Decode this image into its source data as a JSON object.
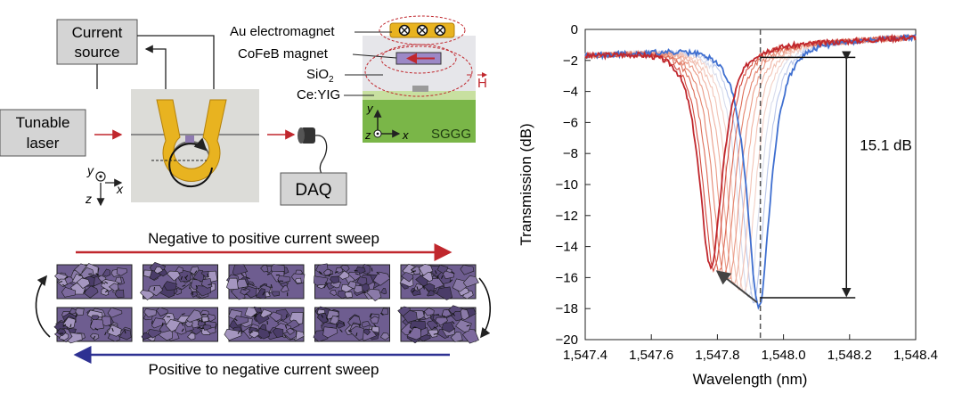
{
  "schematic": {
    "current_source": "Current\nsource",
    "tunable_laser": "Tunable\nlaser",
    "daq": "DAQ",
    "axes_left": {
      "y": "y",
      "x": "x",
      "z": "z"
    },
    "cross_section": {
      "au_label": "Au electromagnet",
      "cofeb_label": "CoFeB magnet",
      "sio2_label": "SiO",
      "sio2_sub": "2",
      "ceyig_label": "Ce:YIG",
      "sggg_label": "SGGG",
      "h_label": "H",
      "axes": {
        "y": "y",
        "z": "z",
        "x": "x"
      }
    }
  },
  "sweeps": {
    "forward_label": "Negative to positive current sweep",
    "reverse_label": "Positive to negative current sweep",
    "forward_color": "#c0272d",
    "reverse_color": "#2e3192",
    "domain_rows": 2,
    "domain_cols": 5
  },
  "colors": {
    "gold": "#e8b320",
    "gold_dark": "#b3800a",
    "chip": "#dcdcd8",
    "sggg": "#7ab648",
    "ceyig": "#c8e0a0",
    "domain_fill": "#7d6a9e",
    "red": "#c0272d",
    "blue": "#3f6fd0"
  },
  "chart_data": {
    "type": "line",
    "xlabel": "Wavelength (nm)",
    "ylabel": "Transmission (dB)",
    "xlim": [
      1547.4,
      1548.4
    ],
    "ylim": [
      -20,
      0
    ],
    "x_ticks": [
      "1,547.4",
      "1,547.6",
      "1,547.8",
      "1,548.0",
      "1,548.2",
      "1,548.4"
    ],
    "y_ticks": [
      "0",
      "−2",
      "−4",
      "−6",
      "−8",
      "−10",
      "−12",
      "−14",
      "−16",
      "−18",
      "−20"
    ],
    "grid": false,
    "dashed_line_x": 1547.93,
    "annotation": {
      "text": "15.1 dB",
      "x": 1548.15,
      "y_top": -1.8,
      "y_bottom": -17.3
    },
    "trend_arrow": {
      "from": [
        1547.92,
        -17.6
      ],
      "to": [
        1547.8,
        -15.6
      ]
    },
    "series": [
      {
        "color": "#c0272d",
        "center": 1547.78,
        "depth": -15.3,
        "width": 0.075
      },
      {
        "color": "#d24a3e",
        "center": 1547.79,
        "depth": -15.5,
        "width": 0.075
      },
      {
        "color": "#dc6a55",
        "center": 1547.805,
        "depth": -15.7,
        "width": 0.075
      },
      {
        "color": "#e4836d",
        "center": 1547.82,
        "depth": -15.9,
        "width": 0.075
      },
      {
        "color": "#ea9a86",
        "center": 1547.835,
        "depth": -16.1,
        "width": 0.075
      },
      {
        "color": "#efb09f",
        "center": 1547.85,
        "depth": -16.4,
        "width": 0.075
      },
      {
        "color": "#f2c2b4",
        "center": 1547.865,
        "depth": -16.7,
        "width": 0.075
      },
      {
        "color": "#f3d0c6",
        "center": 1547.88,
        "depth": -17.0,
        "width": 0.075
      },
      {
        "color": "#d8dcec",
        "center": 1547.895,
        "depth": -17.3,
        "width": 0.075
      },
      {
        "color": "#b9c6ea",
        "center": 1547.91,
        "depth": -17.6,
        "width": 0.075
      },
      {
        "color": "#3f6fd0",
        "center": 1547.925,
        "depth": -17.9,
        "width": 0.075
      }
    ]
  }
}
